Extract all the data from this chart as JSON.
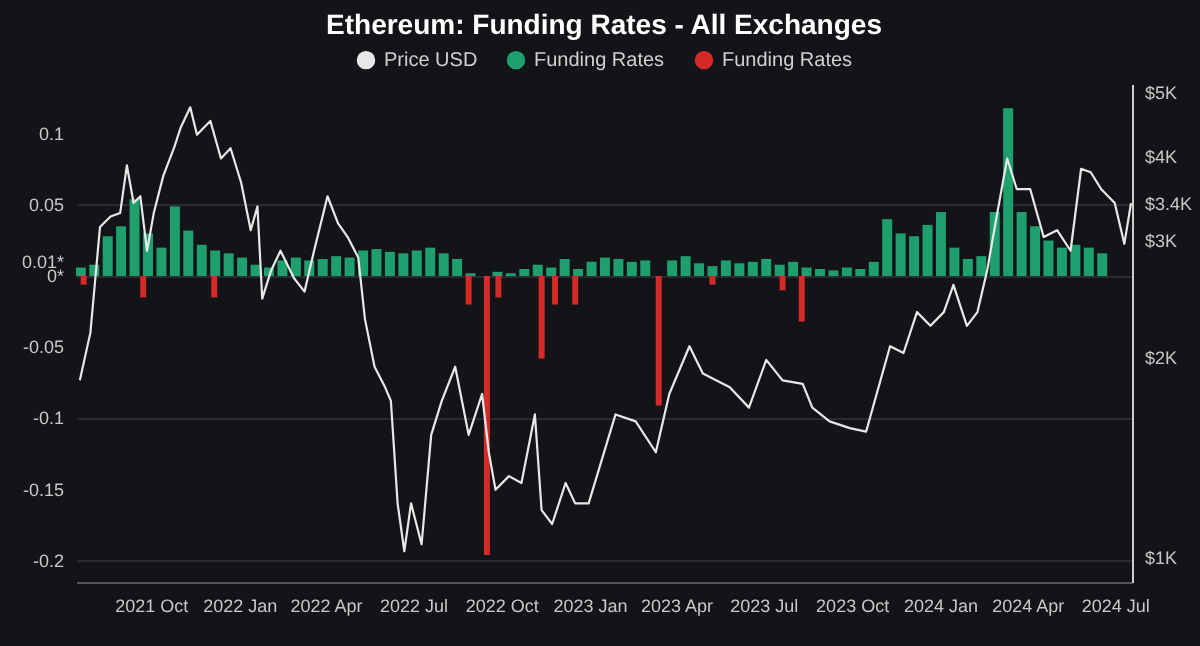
{
  "chart_data": {
    "type": "bar",
    "title": "Ethereum: Funding Rates - All Exchanges",
    "xlim": [
      "2021-07-14",
      "2024-07-18"
    ],
    "xticks": [
      {
        "value": "2021-10-01",
        "label": "2021 Oct"
      },
      {
        "value": "2022-01-01",
        "label": "2022 Jan"
      },
      {
        "value": "2022-04-01",
        "label": "2022 Apr"
      },
      {
        "value": "2022-07-01",
        "label": "2022 Jul"
      },
      {
        "value": "2022-10-01",
        "label": "2022 Oct"
      },
      {
        "value": "2023-01-01",
        "label": "2023 Jan"
      },
      {
        "value": "2023-04-01",
        "label": "2023 Apr"
      },
      {
        "value": "2023-07-01",
        "label": "2023 Jul"
      },
      {
        "value": "2023-10-01",
        "label": "2023 Oct"
      },
      {
        "value": "2024-01-01",
        "label": "2024 Jan"
      },
      {
        "value": "2024-04-01",
        "label": "2024 Apr"
      },
      {
        "value": "2024-07-01",
        "label": "2024 Jul"
      }
    ],
    "ylim": [
      -0.215,
      0.135
    ],
    "yticks": [
      0.1,
      0.05,
      {
        "value": 0.01,
        "label": "0.01*"
      },
      {
        "value": 0,
        "label": "0*"
      },
      -0.05,
      -0.1,
      -0.15,
      -0.2
    ],
    "y2lim": [
      918,
      5140
    ],
    "y2ticks": [
      {
        "value": 1000,
        "label": "$1K"
      },
      {
        "value": 2000,
        "label": "$2K"
      },
      {
        "value": 3000,
        "label": "$3K"
      },
      {
        "value": 3400,
        "label": "$3.4K"
      },
      {
        "value": 4000,
        "label": "$4K"
      },
      {
        "value": 5000,
        "label": "$5K"
      }
    ],
    "log": "y2",
    "grid": "y",
    "legend": "top",
    "series": [
      {
        "name": "Price USD",
        "type": "line",
        "axis": "y2",
        "color": "#e8e8e8",
        "x": [
          "2021-07-18",
          "2021-07-29",
          "2021-08-08",
          "2021-08-19",
          "2021-08-29",
          "2021-09-05",
          "2021-09-12",
          "2021-09-19",
          "2021-09-26",
          "2021-10-03",
          "2021-10-13",
          "2021-10-24",
          "2021-10-31",
          "2021-11-10",
          "2021-11-17",
          "2021-11-24",
          "2021-12-01",
          "2021-12-12",
          "2021-12-22",
          "2022-01-02",
          "2022-01-12",
          "2022-01-19",
          "2022-01-24",
          "2022-02-02",
          "2022-02-12",
          "2022-02-26",
          "2022-03-09",
          "2022-03-19",
          "2022-04-02",
          "2022-04-13",
          "2022-04-23",
          "2022-05-04",
          "2022-05-11",
          "2022-05-21",
          "2022-06-01",
          "2022-06-07",
          "2022-06-14",
          "2022-06-21",
          "2022-06-28",
          "2022-07-09",
          "2022-07-19",
          "2022-07-30",
          "2022-08-13",
          "2022-08-20",
          "2022-08-27",
          "2022-09-10",
          "2022-09-17",
          "2022-09-24",
          "2022-10-08",
          "2022-10-21",
          "2022-11-04",
          "2022-11-11",
          "2022-11-22",
          "2022-12-06",
          "2022-12-16",
          "2022-12-30",
          "2023-01-27",
          "2023-02-17",
          "2023-03-10",
          "2023-03-24",
          "2023-04-14",
          "2023-04-28",
          "2023-05-26",
          "2023-06-15",
          "2023-07-03",
          "2023-07-20",
          "2023-08-10",
          "2023-08-20",
          "2023-09-07",
          "2023-09-28",
          "2023-10-15",
          "2023-10-26",
          "2023-11-09",
          "2023-11-23",
          "2023-12-07",
          "2023-12-21",
          "2024-01-04",
          "2024-01-14",
          "2024-01-28",
          "2024-02-08",
          "2024-02-18",
          "2024-02-28",
          "2024-03-10",
          "2024-03-20",
          "2024-04-03",
          "2024-04-17",
          "2024-05-01",
          "2024-05-15",
          "2024-05-26",
          "2024-06-05",
          "2024-06-16",
          "2024-06-30",
          "2024-07-10",
          "2024-07-17"
        ],
        "values": [
          1844,
          2175,
          3135,
          3250,
          3289,
          3878,
          3405,
          3486,
          2887,
          3289,
          3744,
          4116,
          4418,
          4742,
          4313,
          4418,
          4523,
          3972,
          4116,
          3656,
          3100,
          3365,
          2446,
          2691,
          2887,
          2627,
          2506,
          2887,
          3486,
          3173,
          3027,
          2820,
          2279,
          1933,
          1800,
          1718,
          1205,
          1021,
          1205,
          1046,
          1527,
          1718,
          1933,
          1718,
          1527,
          1759,
          1438,
          1263,
          1324,
          1293,
          1639,
          1177,
          1122,
          1293,
          1205,
          1205,
          1639,
          1600,
          1438,
          1759,
          2075,
          1888,
          1800,
          1678,
          1979,
          1844,
          1822,
          1678,
          1600,
          1563,
          1544,
          1759,
          2075,
          2027,
          2335,
          2227,
          2335,
          2566,
          2227,
          2335,
          2691,
          3249,
          3972,
          3572,
          3572,
          3027,
          3100,
          2887,
          3834,
          3788,
          3572,
          3405,
          2957,
          3405
        ]
      },
      {
        "name": "Funding Rates",
        "color": "#1f9e6e",
        "x": [
          "2021-07-19",
          "2021-08-02",
          "2021-08-16",
          "2021-08-30",
          "2021-09-13",
          "2021-09-27",
          "2021-10-11",
          "2021-10-25",
          "2021-11-08",
          "2021-11-22",
          "2021-12-06",
          "2021-12-20",
          "2022-01-03",
          "2022-01-17",
          "2022-01-31",
          "2022-02-14",
          "2022-02-28",
          "2022-03-14",
          "2022-03-28",
          "2022-04-11",
          "2022-04-25",
          "2022-05-09",
          "2022-05-23",
          "2022-06-06",
          "2022-06-20",
          "2022-07-04",
          "2022-07-18",
          "2022-08-01",
          "2022-08-15",
          "2022-08-29",
          "2022-09-12",
          "2022-09-26",
          "2022-10-10",
          "2022-10-24",
          "2022-11-07",
          "2022-11-21",
          "2022-12-05",
          "2022-12-19",
          "2023-01-02",
          "2023-01-16",
          "2023-01-30",
          "2023-02-13",
          "2023-02-27",
          "2023-03-13",
          "2023-03-27",
          "2023-04-10",
          "2023-04-24",
          "2023-05-08",
          "2023-05-22",
          "2023-06-05",
          "2023-06-19",
          "2023-07-03",
          "2023-07-17",
          "2023-07-31",
          "2023-08-14",
          "2023-08-28",
          "2023-09-11",
          "2023-09-25",
          "2023-10-09",
          "2023-10-23",
          "2023-11-06",
          "2023-11-20",
          "2023-12-04",
          "2023-12-18",
          "2024-01-01",
          "2024-01-15",
          "2024-01-29",
          "2024-02-12",
          "2024-02-26",
          "2024-03-11",
          "2024-03-25",
          "2024-04-08",
          "2024-04-22",
          "2024-05-06",
          "2024-05-20",
          "2024-06-03",
          "2024-06-17"
        ],
        "values": [
          0.006,
          0.008,
          0.028,
          0.035,
          0.054,
          0.03,
          0.02,
          0.049,
          0.032,
          0.022,
          0.018,
          0.016,
          0.013,
          0.008,
          0.006,
          0.011,
          0.013,
          0.011,
          0.012,
          0.014,
          0.013,
          0.018,
          0.019,
          0.017,
          0.016,
          0.018,
          0.02,
          0.016,
          0.012,
          0.002,
          null,
          0.003,
          0.002,
          0.005,
          0.008,
          0.006,
          0.012,
          0.005,
          0.01,
          0.013,
          0.012,
          0.01,
          0.011,
          null,
          0.011,
          0.014,
          0.009,
          0.007,
          0.011,
          0.009,
          0.01,
          0.012,
          0.008,
          0.01,
          0.006,
          0.005,
          0.004,
          0.006,
          0.005,
          0.01,
          0.04,
          0.03,
          0.028,
          0.036,
          0.045,
          0.02,
          0.012,
          0.014,
          0.045,
          0.118,
          0.045,
          0.035,
          0.025,
          0.02,
          0.022,
          0.02,
          0.016
        ]
      },
      {
        "name": "Funding Rates",
        "color": "#d42a2a",
        "x": [
          "2021-07-22",
          "2021-09-22",
          "2021-12-05",
          "2022-08-27",
          "2022-09-15",
          "2022-09-27",
          "2022-11-11",
          "2022-11-25",
          "2022-12-16",
          "2023-03-13",
          "2023-05-08",
          "2023-07-20",
          "2023-08-09"
        ],
        "values": [
          -0.006,
          -0.015,
          -0.015,
          -0.02,
          -0.196,
          -0.015,
          -0.058,
          -0.02,
          -0.02,
          -0.091,
          -0.006,
          -0.01,
          -0.032
        ]
      }
    ]
  }
}
